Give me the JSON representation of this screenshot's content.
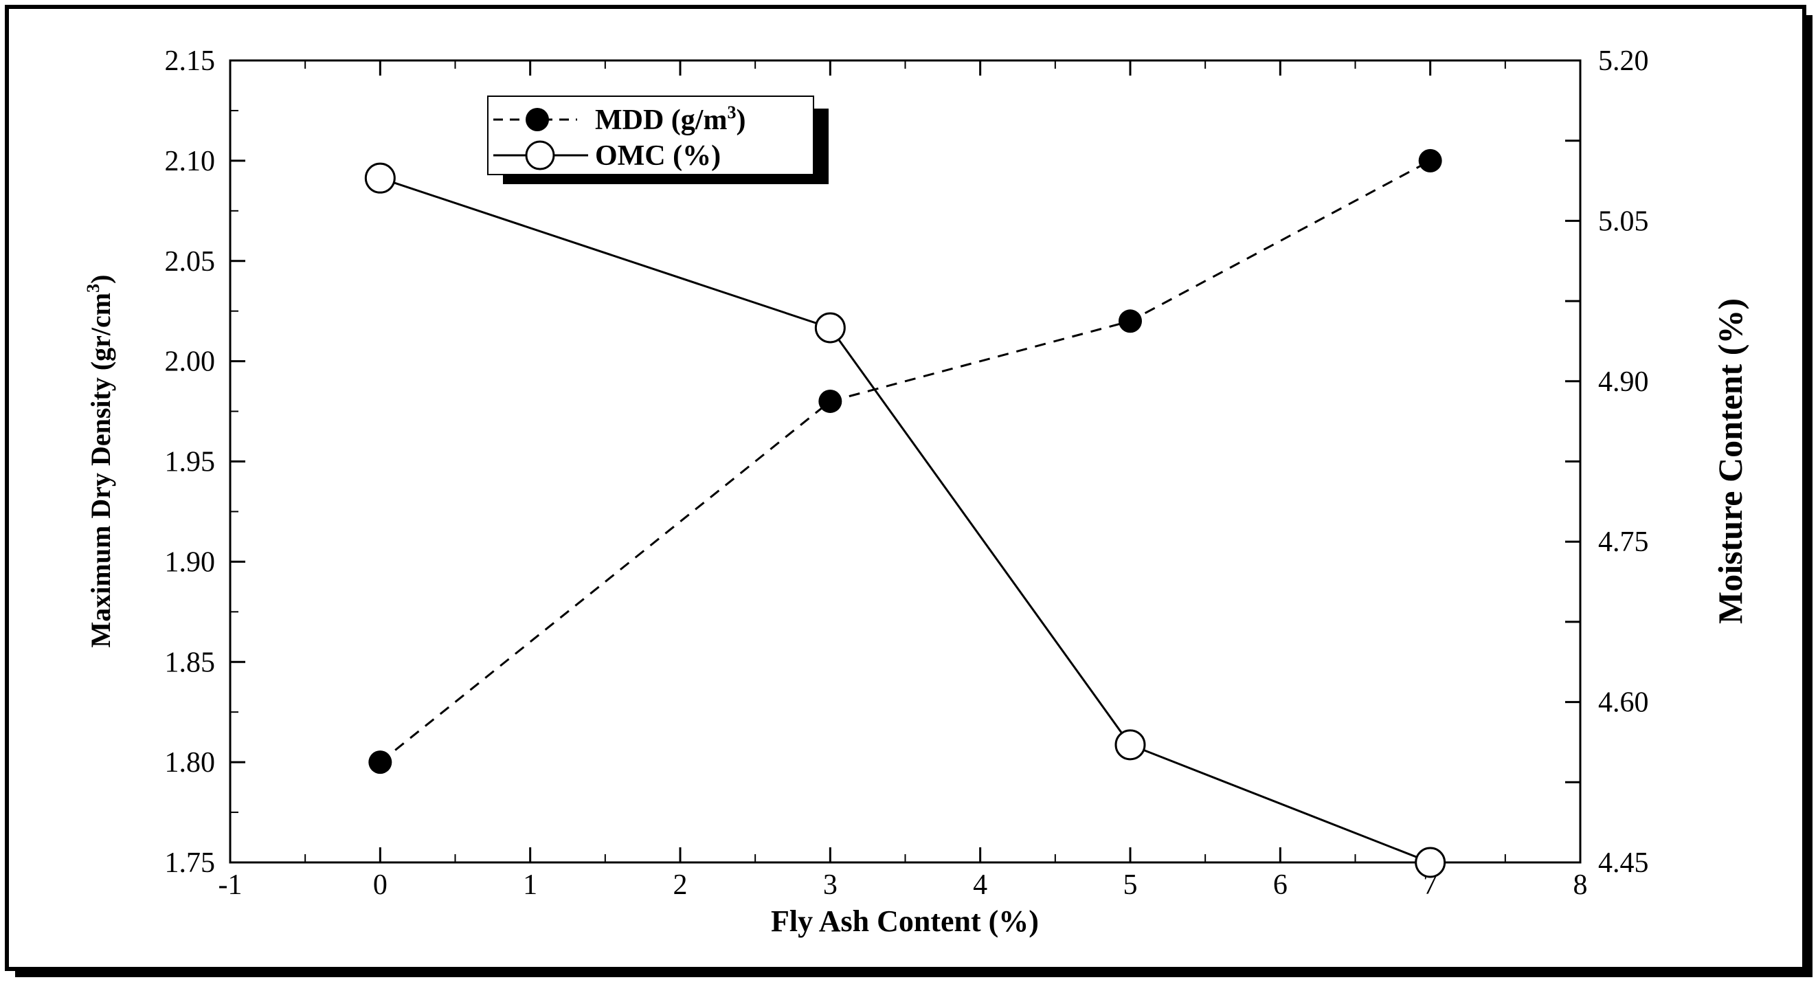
{
  "chart_data": {
    "type": "line",
    "title": "",
    "xlabel": "Fly Ash Content (%)",
    "ylabel_left_main": "Maximum Dry Density (gr/cm",
    "ylabel_left_sup": "3",
    "ylabel_left_end": ")",
    "ylabel_right": "Moisture Content (%)",
    "xlim": [
      -1,
      8
    ],
    "ylim_left": [
      1.75,
      2.15
    ],
    "ylim_right": [
      4.45,
      5.2
    ],
    "y_right_tick_min": 4.45,
    "xticks": [
      "-1",
      "0",
      "1",
      "2",
      "3",
      "4",
      "5",
      "6",
      "7",
      "8"
    ],
    "yticks_left": [
      "1.75",
      "1.80",
      "1.85",
      "1.90",
      "1.95",
      "2.00",
      "2.05",
      "2.10",
      "2.15"
    ],
    "yticks_right": [
      "4.45",
      "4.60",
      "4.75",
      "4.90",
      "5.05",
      "5.20"
    ],
    "legend_position": "top-left",
    "series": [
      {
        "name_main": "MDD (g/m",
        "name_sup": "3",
        "name_end": ")",
        "axis": "left",
        "style": "dashed",
        "marker": "filled-circle",
        "x": [
          0,
          3,
          5,
          7
        ],
        "y": [
          1.8,
          1.98,
          2.02,
          2.1
        ]
      },
      {
        "name": "OMC (%)",
        "axis": "right",
        "style": "solid",
        "marker": "open-circle",
        "x": [
          0,
          3,
          5,
          7
        ],
        "y": [
          5.09,
          4.95,
          4.56,
          4.45
        ]
      }
    ],
    "colors": {
      "line": "#000000",
      "background": "#ffffff"
    }
  }
}
